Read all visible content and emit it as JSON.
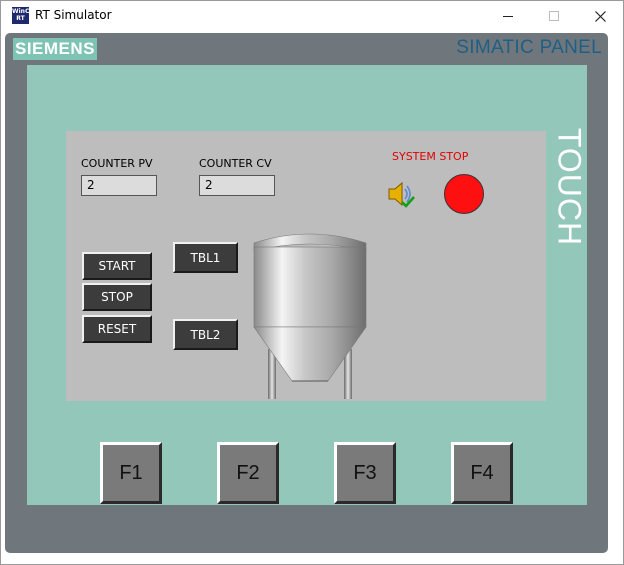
{
  "window": {
    "title": "RT Simulator",
    "icon": "wincc-rt-icon"
  },
  "panel": {
    "brand": "SIEMENS",
    "title": "SIMATIC PANEL",
    "touch_label": "TOUCH"
  },
  "screen": {
    "counter_pv": {
      "label": "COUNTER PV",
      "value": "2"
    },
    "counter_cv": {
      "label": "COUNTER CV",
      "value": "2"
    },
    "system_stop": {
      "label": "SYSTEM STOP",
      "lamp_color": "#ff1010"
    },
    "buttons": {
      "start": "START",
      "stop": "STOP",
      "reset": "RESET",
      "tbl1": "TBL1",
      "tbl2": "TBL2"
    }
  },
  "function_keys": [
    "F1",
    "F2",
    "F3",
    "F4"
  ],
  "colors": {
    "bezel": "#93c7ba",
    "frame": "#6f777c",
    "screen": "#bdbdbd",
    "brand": "#7fc3b5",
    "panel_title": "#1f5f86"
  }
}
